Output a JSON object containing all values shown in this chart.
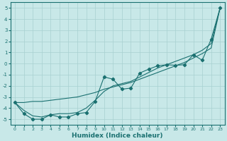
{
  "xlabel": "Humidex (Indice chaleur)",
  "background_color": "#c8e8e8",
  "grid_color": "#a8d0d0",
  "line_color": "#1a7070",
  "xlim": [
    -0.5,
    23.5
  ],
  "ylim": [
    -5.5,
    5.5
  ],
  "xticks": [
    0,
    1,
    2,
    3,
    4,
    5,
    6,
    7,
    8,
    9,
    10,
    11,
    12,
    13,
    14,
    15,
    16,
    17,
    18,
    19,
    20,
    21,
    22,
    23
  ],
  "yticks": [
    -5,
    -4,
    -3,
    -2,
    -1,
    0,
    1,
    2,
    3,
    4,
    5
  ],
  "x_data": [
    0,
    1,
    2,
    3,
    4,
    5,
    6,
    7,
    8,
    9,
    10,
    11,
    12,
    13,
    14,
    15,
    16,
    17,
    18,
    19,
    20,
    21,
    22,
    23
  ],
  "y_markers": [
    -3.5,
    -4.5,
    -5.0,
    -5.0,
    -4.6,
    -4.8,
    -4.8,
    -4.5,
    -4.4,
    -3.4,
    -1.2,
    -1.4,
    -2.3,
    -2.2,
    -0.85,
    -0.5,
    -0.2,
    -0.1,
    -0.15,
    -0.1,
    0.8,
    0.3,
    2.2,
    5.0
  ],
  "y_smooth": [
    -3.5,
    -4.2,
    -4.7,
    -4.8,
    -4.6,
    -4.5,
    -4.5,
    -4.4,
    -4.0,
    -3.3,
    -2.5,
    -2.0,
    -1.8,
    -1.6,
    -1.2,
    -0.8,
    -0.4,
    -0.1,
    0.2,
    0.5,
    0.8,
    1.2,
    1.8,
    5.0
  ],
  "y_straight": [
    -3.5,
    -3.5,
    -3.4,
    -3.4,
    -3.3,
    -3.2,
    -3.1,
    -3.0,
    -2.8,
    -2.6,
    -2.3,
    -2.1,
    -1.9,
    -1.7,
    -1.4,
    -1.1,
    -0.8,
    -0.5,
    -0.2,
    0.1,
    0.5,
    0.9,
    1.4,
    5.0
  ]
}
